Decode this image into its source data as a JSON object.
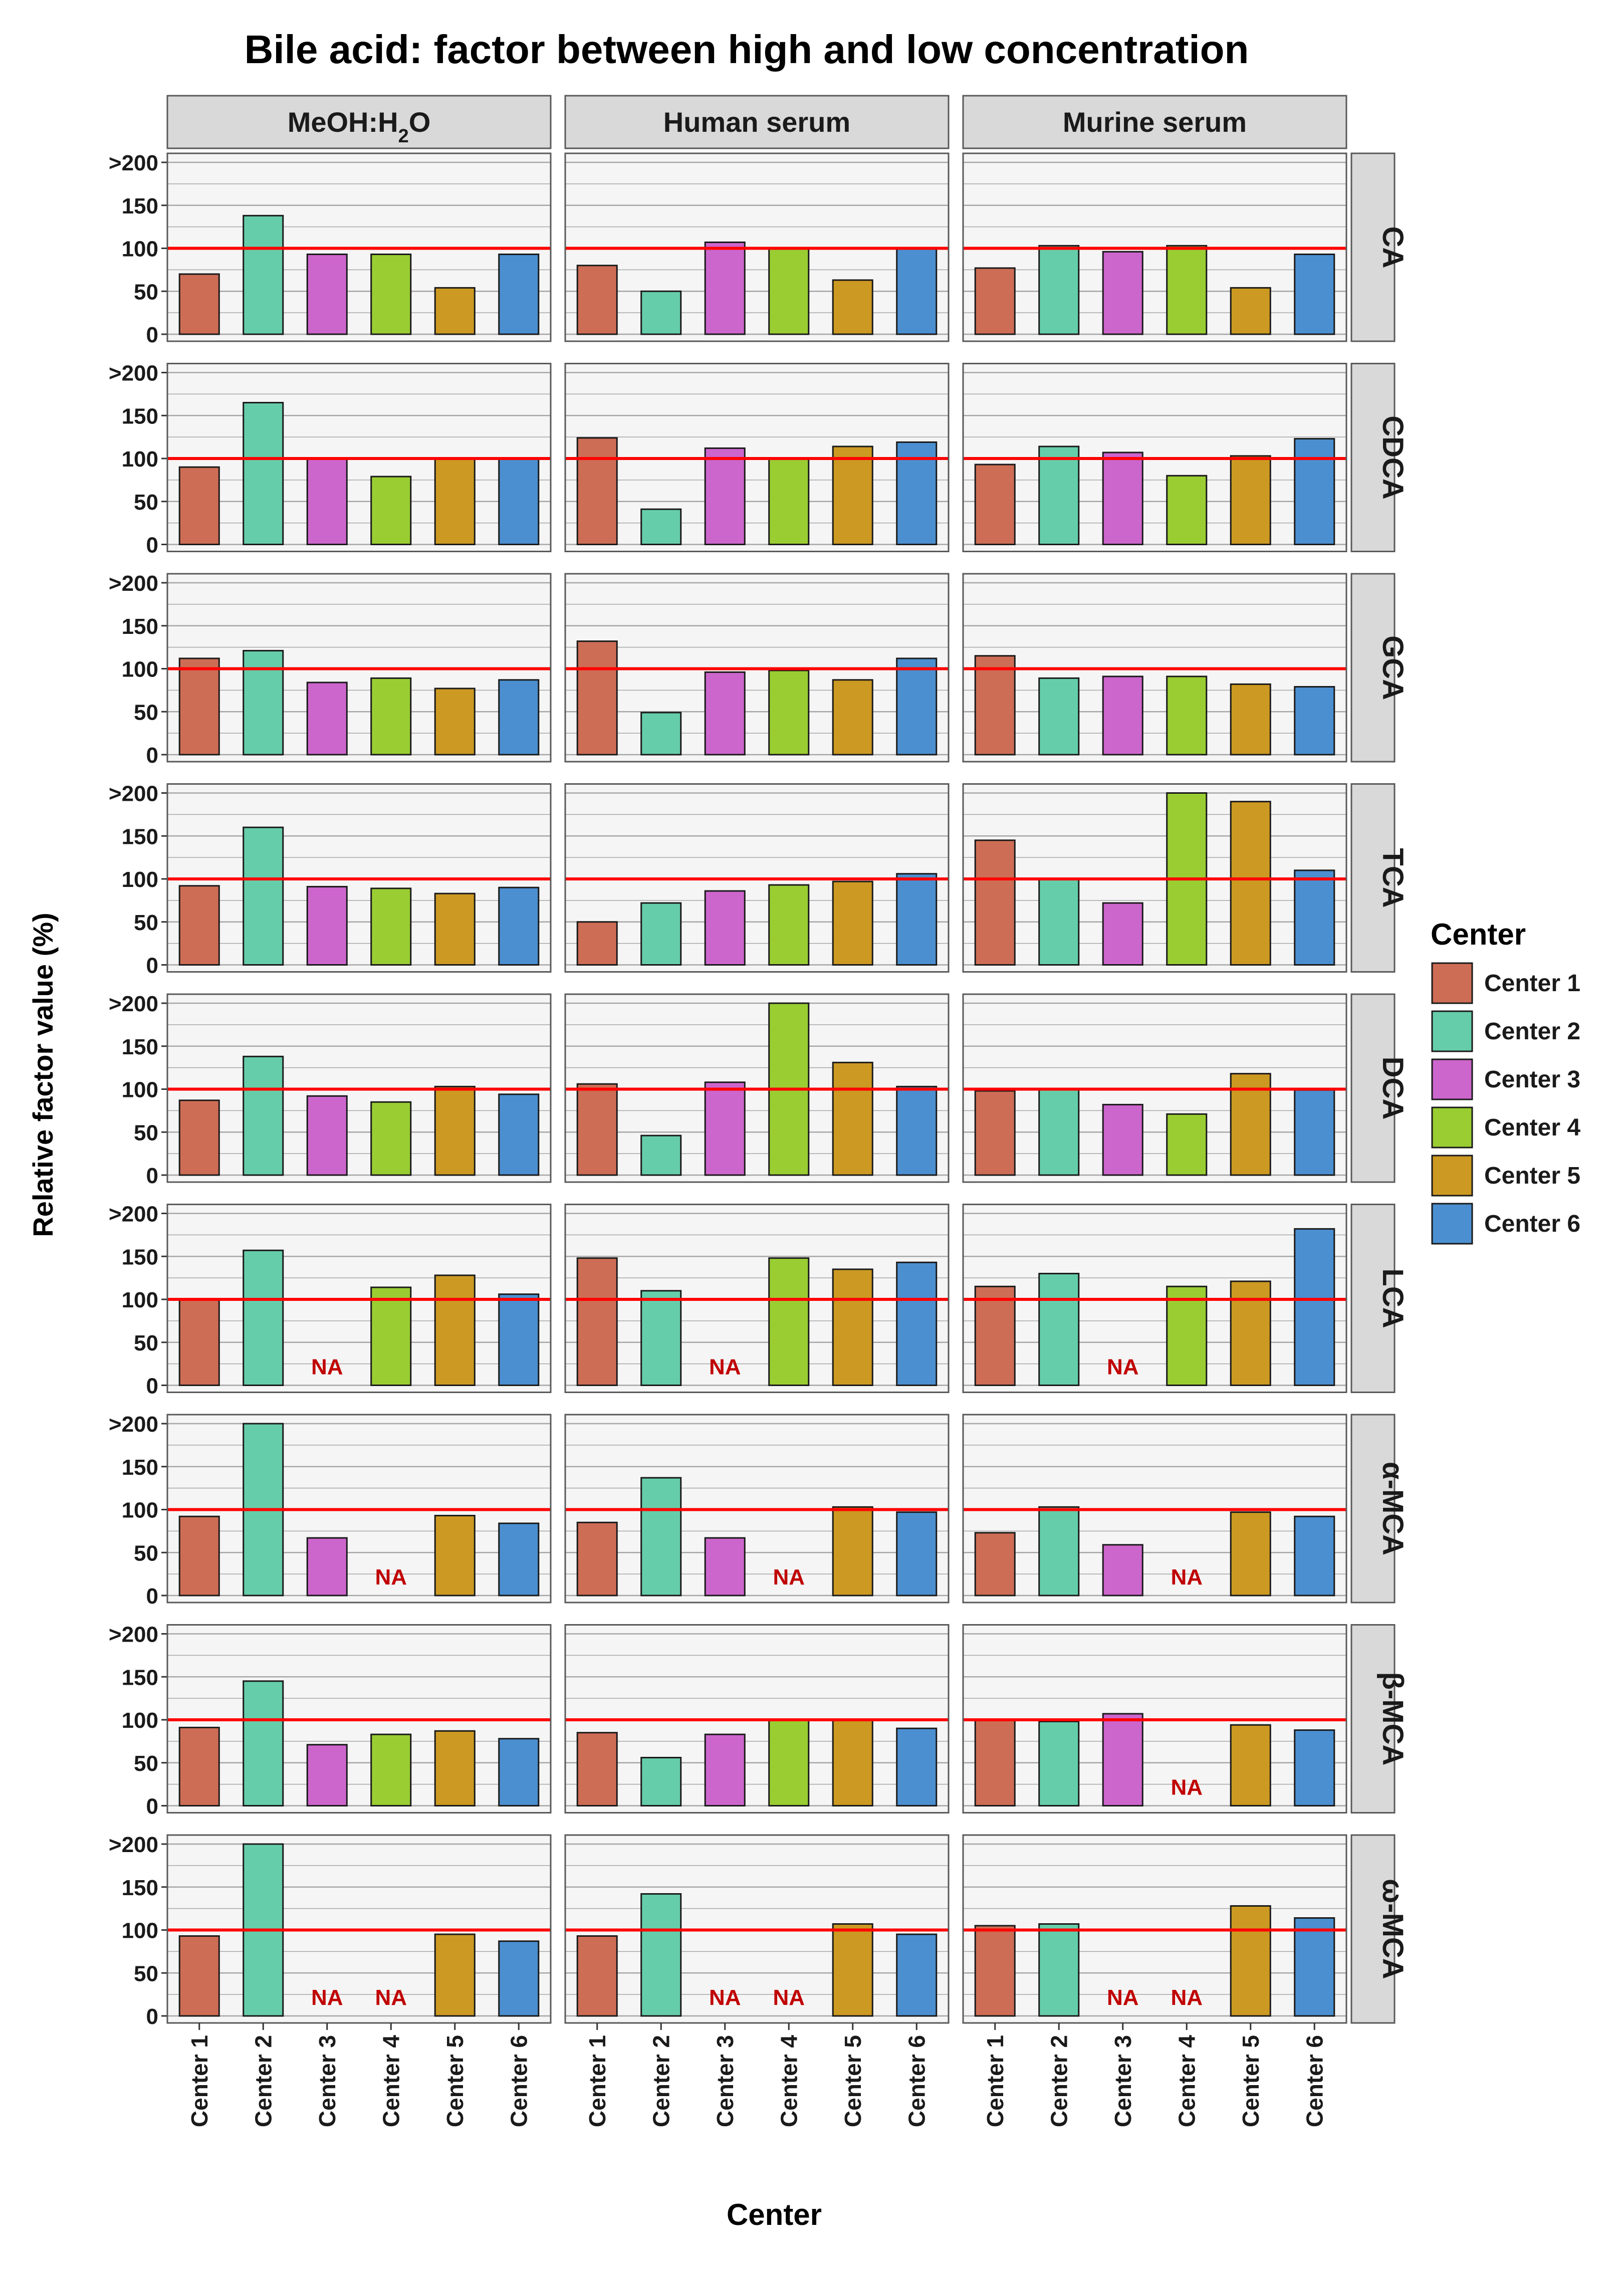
{
  "title": "Bile acid: factor between high and low concentration",
  "chart_data": {
    "type": "bar",
    "title": "Bile acid: factor between high and low concentration",
    "xlabel": "Center",
    "ylabel": "Relative factor value (%)",
    "ylim": [
      0,
      200
    ],
    "y_ticks": [
      {
        "value": 0,
        "label": "0"
      },
      {
        "value": 50,
        "label": "50"
      },
      {
        "value": 100,
        "label": "100"
      },
      {
        "value": 150,
        "label": "150"
      },
      {
        "value": 200,
        "label": ">200"
      }
    ],
    "reference_line": 100,
    "reference_color": "#ff0000",
    "na_label": "NA",
    "na_color": "#c00000",
    "categories": [
      "Center 1",
      "Center 2",
      "Center 3",
      "Center 4",
      "Center 5",
      "Center 6"
    ],
    "colors": [
      "#cd6d55",
      "#66cdaa",
      "#cc66cc",
      "#9acd32",
      "#cc9922",
      "#4b8fd0"
    ],
    "matrix_columns": [
      {
        "label_main": "MeOH:H",
        "label_sub": "2",
        "label_end": "O"
      },
      {
        "label_main": "Human serum",
        "label_sub": "",
        "label_end": ""
      },
      {
        "label_main": "Murine serum",
        "label_sub": "",
        "label_end": ""
      }
    ],
    "matrix_rows": [
      "CA",
      "CDCA",
      "GCA",
      "TCA",
      "DCA",
      "LCA",
      "α-MCA",
      "β-MCA",
      "ω-MCA"
    ],
    "values": [
      [
        [
          70,
          138,
          93,
          93,
          54,
          93
        ],
        [
          80,
          50,
          107,
          100,
          63,
          100
        ],
        [
          77,
          103,
          96,
          103,
          54,
          93
        ]
      ],
      [
        [
          90,
          165,
          100,
          79,
          100,
          100
        ],
        [
          124,
          41,
          112,
          100,
          114,
          119
        ],
        [
          93,
          114,
          107,
          80,
          103,
          123
        ]
      ],
      [
        [
          112,
          121,
          84,
          89,
          77,
          87
        ],
        [
          132,
          49,
          96,
          98,
          87,
          112
        ],
        [
          115,
          89,
          91,
          91,
          82,
          79
        ]
      ],
      [
        [
          92,
          160,
          91,
          89,
          83,
          90
        ],
        [
          50,
          72,
          86,
          93,
          97,
          106
        ],
        [
          145,
          100,
          72,
          200,
          190,
          110
        ]
      ],
      [
        [
          87,
          138,
          92,
          85,
          103,
          94
        ],
        [
          106,
          46,
          108,
          200,
          131,
          103
        ],
        [
          98,
          100,
          82,
          71,
          118,
          99
        ]
      ],
      [
        [
          100,
          157,
          null,
          114,
          128,
          106
        ],
        [
          148,
          110,
          null,
          148,
          135,
          143
        ],
        [
          115,
          130,
          null,
          115,
          121,
          182
        ]
      ],
      [
        [
          92,
          200,
          67,
          null,
          93,
          84
        ],
        [
          85,
          137,
          67,
          null,
          103,
          97
        ],
        [
          73,
          103,
          59,
          null,
          97,
          92
        ]
      ],
      [
        [
          91,
          145,
          71,
          83,
          87,
          78
        ],
        [
          85,
          56,
          83,
          100,
          100,
          90
        ],
        [
          100,
          98,
          107,
          null,
          94,
          88
        ]
      ],
      [
        [
          93,
          200,
          null,
          null,
          95,
          87
        ],
        [
          93,
          142,
          null,
          null,
          107,
          95
        ],
        [
          105,
          107,
          null,
          null,
          128,
          114
        ]
      ]
    ],
    "legend": {
      "title": "Center",
      "items": [
        "Center 1",
        "Center 2",
        "Center 3",
        "Center 4",
        "Center 5",
        "Center 6"
      ],
      "position": "right"
    }
  }
}
